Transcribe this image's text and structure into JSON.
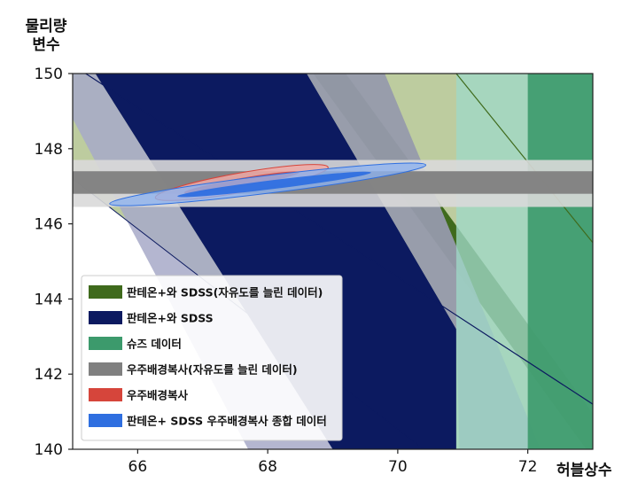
{
  "chart_data": {
    "type": "area",
    "title": "",
    "xlabel": "허블상수",
    "ylabel": [
      "물리량",
      "변수"
    ],
    "xlim": [
      65,
      73
    ],
    "ylim": [
      140,
      150
    ],
    "xticks": [
      "66",
      "68",
      "70",
      "72"
    ],
    "yticks": [
      "140",
      "142",
      "144",
      "146",
      "148",
      "150"
    ],
    "legend_position": "lower-left",
    "series": [
      {
        "name": "판테온+와 SDSS(자유도를 늘린 데이터)",
        "color": "#3f6a1c"
      },
      {
        "name": "판테온+와 SDSS",
        "color": "#0c1a60"
      },
      {
        "name": "슈즈 데이터",
        "color": "#3c9a6c"
      },
      {
        "name": "우주배경복사(자유도를 늘린 데이터)",
        "color": "#808080"
      },
      {
        "name": "우주배경복사",
        "color": "#d6453b"
      },
      {
        "name": "판테온+ SDSS 우주배경복사 종합 데이터",
        "color": "#2f6fe0"
      }
    ],
    "bands": {
      "slanted_outer": {
        "x_at_150": [
          65.0,
          70.9
        ],
        "x_at_140": [
          58.2,
          64.1
        ]
      },
      "slanted_wide": {
        "x_at_150": [
          65.2,
          68.6
        ],
        "x_at_140": [
          64.0,
          67.4
        ]
      },
      "slanted_core": {
        "x_at_150": [
          66.0,
          68.7
        ],
        "x_at_140": [
          68.2,
          70.9
        ]
      },
      "slanted_light_r": {
        "x_at_150": [
          68.6,
          72.9
        ],
        "x_at_140": [
          65.6,
          69.6
        ]
      },
      "shoes_outer": {
        "x_range": [
          70.9,
          73.0
        ]
      },
      "shoes_inner": {
        "x_range": [
          72.0,
          73.0
        ]
      },
      "cmb_outer": {
        "y_range": [
          146.45,
          147.7
        ]
      },
      "cmb_inner": {
        "y_range": [
          146.8,
          147.4
        ]
      }
    },
    "ellipses": {
      "cmb": {
        "center": [
          67.6,
          147.1
        ],
        "outer_extent_x": [
          66.1,
          68.8
        ],
        "inner_extent_x": [
          66.6,
          68.4
        ],
        "color": "#d6453b"
      },
      "combined": {
        "center": [
          68.0,
          147.05
        ],
        "outer_extent_x": [
          65.6,
          70.5
        ],
        "inner_extent_x": [
          66.6,
          69.6
        ],
        "color": "#2f6fe0"
      }
    }
  }
}
